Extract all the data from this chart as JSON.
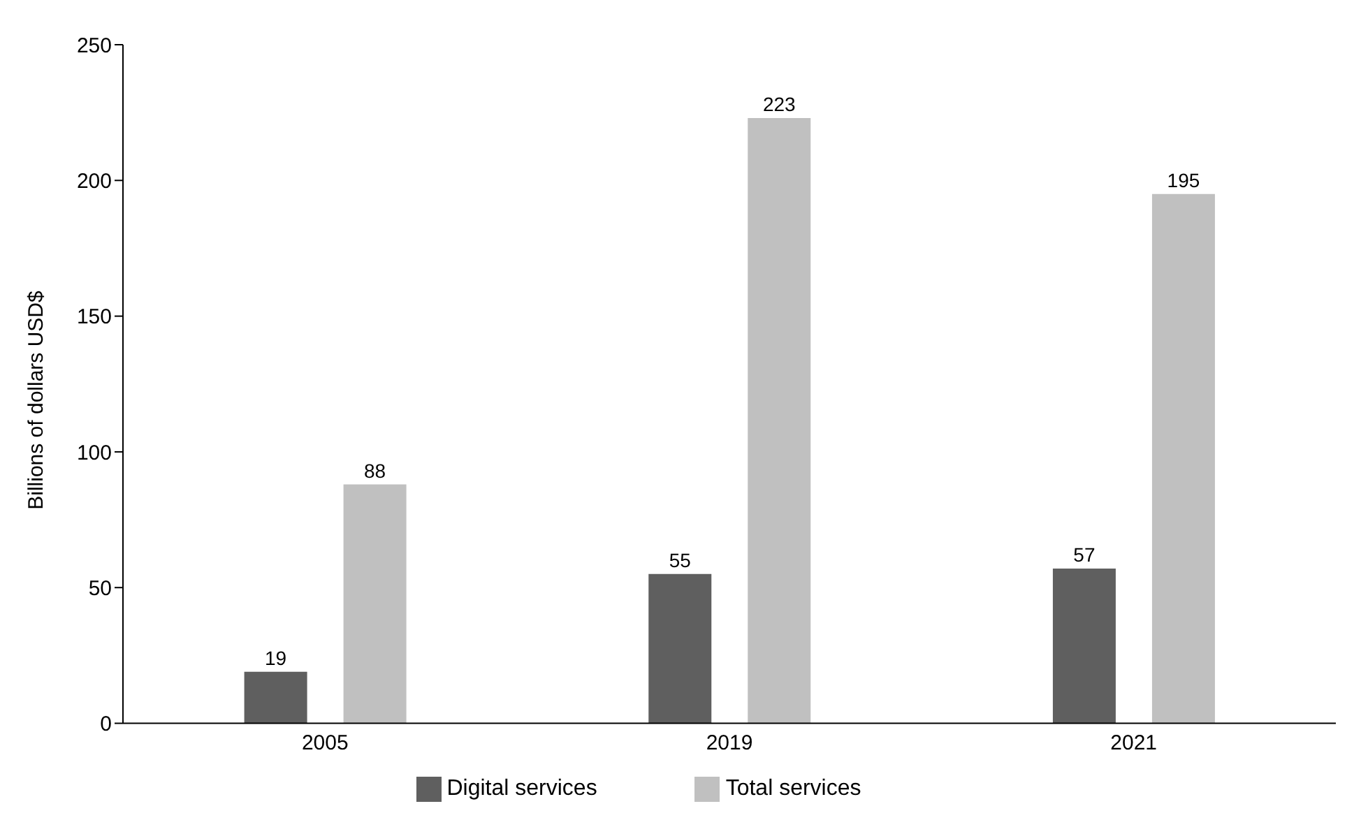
{
  "chart_data": {
    "type": "bar",
    "ylabel": "Billions of dollars USD$",
    "categories": [
      "2005",
      "2019",
      "2021"
    ],
    "series": [
      {
        "name": "Digital services",
        "color": "#5f5f5f",
        "values": [
          19,
          55,
          57
        ]
      },
      {
        "name": "Total services",
        "color": "#c0c0c0",
        "values": [
          88,
          223,
          195
        ]
      }
    ],
    "ylim": [
      0,
      250
    ],
    "yticks": [
      0,
      50,
      100,
      150,
      200,
      250
    ],
    "grid": false,
    "legend": "bottom",
    "data_labels": true
  }
}
